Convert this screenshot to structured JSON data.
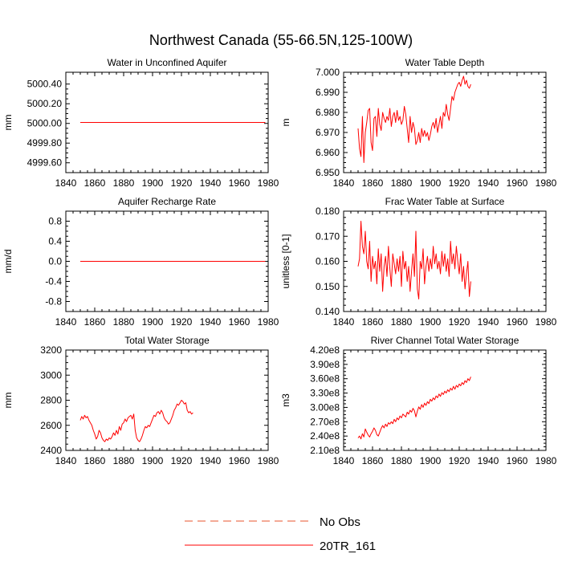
{
  "figure": {
    "title": "Northwest Canada (55-66.5N,125-100W)",
    "legend": [
      {
        "label": "No Obs",
        "style": "dashed",
        "colors": [
          "#e8542c",
          "#6a6acd"
        ]
      },
      {
        "label": "20TR_161",
        "style": "solid",
        "colors": [
          "#ff0000"
        ]
      }
    ],
    "series_color": "#ff0000"
  },
  "chart_data": [
    {
      "type": "line",
      "title": "Water in Unconfined Aquifer",
      "xlabel": "",
      "ylabel": "mm",
      "xlim": [
        1840,
        1980
      ],
      "ylim": [
        4999.5,
        5000.52
      ],
      "xticks": [
        1840,
        1860,
        1880,
        1900,
        1920,
        1940,
        1960,
        1980
      ],
      "yticks": [
        4999.6,
        4999.8,
        5000.0,
        5000.2,
        5000.4
      ],
      "yticklabels": [
        "4999.60",
        "4999.80",
        "5000.00",
        "5000.20",
        "5000.40"
      ],
      "series": [
        {
          "name": "20TR_161",
          "x": [
            1850,
            1978
          ],
          "values": [
            5000.01,
            5000.01
          ]
        }
      ]
    },
    {
      "type": "line",
      "title": "Water Table Depth",
      "xlabel": "",
      "ylabel": "m",
      "xlim": [
        1840,
        1980
      ],
      "ylim": [
        6.95,
        7.0
      ],
      "xticks": [
        1840,
        1860,
        1880,
        1900,
        1920,
        1940,
        1960,
        1980
      ],
      "yticks": [
        6.95,
        6.96,
        6.97,
        6.98,
        6.99,
        7.0
      ],
      "yticklabels": [
        "6.950",
        "6.960",
        "6.970",
        "6.980",
        "6.990",
        "7.000"
      ],
      "series": [
        {
          "name": "20TR_161",
          "x_start": 1850,
          "x_step": 1,
          "values": [
            6.972,
            6.962,
            6.958,
            6.978,
            6.955,
            6.97,
            6.975,
            6.981,
            6.982,
            6.965,
            6.961,
            6.977,
            6.978,
            6.968,
            6.982,
            6.974,
            6.971,
            6.98,
            6.977,
            6.975,
            6.978,
            6.976,
            6.982,
            6.973,
            6.978,
            6.98,
            6.975,
            6.981,
            6.976,
            6.978,
            6.974,
            6.976,
            6.983,
            6.979,
            6.972,
            6.965,
            6.978,
            6.97,
            6.975,
            6.972,
            6.964,
            6.966,
            6.97,
            6.965,
            6.972,
            6.968,
            6.971,
            6.968,
            6.97,
            6.966,
            6.969,
            6.973,
            6.975,
            6.972,
            6.977,
            6.97,
            6.974,
            6.978,
            6.972,
            6.98,
            6.978,
            6.984,
            6.979,
            6.976,
            6.982,
            6.988,
            6.986,
            6.99,
            6.992,
            6.994,
            6.995,
            6.993,
            6.996,
            6.998,
            6.994,
            6.996,
            6.993,
            6.992,
            6.994
          ]
        }
      ]
    },
    {
      "type": "line",
      "title": "Aquifer Recharge Rate",
      "xlabel": "",
      "ylabel": "mm/d",
      "xlim": [
        1840,
        1980
      ],
      "ylim": [
        -1.0,
        1.0
      ],
      "xticks": [
        1840,
        1860,
        1880,
        1900,
        1920,
        1940,
        1960,
        1980
      ],
      "yticks": [
        -0.8,
        -0.4,
        0.0,
        0.4,
        0.8
      ],
      "yticklabels": [
        "-0.8",
        "-0.4",
        "0.0",
        "0.4",
        "0.8"
      ],
      "series": [
        {
          "name": "20TR_161",
          "x": [
            1850,
            1978
          ],
          "values": [
            0.0,
            0.0
          ]
        }
      ]
    },
    {
      "type": "line",
      "title": "Frac Water Table at Surface",
      "xlabel": "",
      "ylabel": "unitless [0-1]",
      "xlim": [
        1840,
        1980
      ],
      "ylim": [
        0.14,
        0.18
      ],
      "xticks": [
        1840,
        1860,
        1880,
        1900,
        1920,
        1940,
        1960,
        1980
      ],
      "yticks": [
        0.14,
        0.15,
        0.16,
        0.17,
        0.18
      ],
      "yticklabels": [
        "0.140",
        "0.150",
        "0.160",
        "0.170",
        "0.180"
      ],
      "series": [
        {
          "name": "20TR_161",
          "x_start": 1850,
          "x_step": 1,
          "values": [
            0.158,
            0.161,
            0.176,
            0.166,
            0.163,
            0.172,
            0.16,
            0.157,
            0.168,
            0.152,
            0.162,
            0.157,
            0.16,
            0.151,
            0.165,
            0.156,
            0.163,
            0.148,
            0.158,
            0.162,
            0.154,
            0.166,
            0.157,
            0.15,
            0.163,
            0.159,
            0.155,
            0.161,
            0.156,
            0.162,
            0.15,
            0.164,
            0.157,
            0.16,
            0.152,
            0.158,
            0.148,
            0.156,
            0.163,
            0.154,
            0.172,
            0.149,
            0.145,
            0.16,
            0.157,
            0.165,
            0.151,
            0.158,
            0.162,
            0.156,
            0.161,
            0.157,
            0.166,
            0.159,
            0.163,
            0.157,
            0.16,
            0.155,
            0.164,
            0.158,
            0.163,
            0.156,
            0.161,
            0.154,
            0.168,
            0.159,
            0.163,
            0.157,
            0.166,
            0.16,
            0.155,
            0.163,
            0.152,
            0.158,
            0.149,
            0.155,
            0.16,
            0.146,
            0.152
          ]
        }
      ]
    },
    {
      "type": "line",
      "title": "Total Water Storage",
      "xlabel": "",
      "ylabel": "mm",
      "xlim": [
        1840,
        1980
      ],
      "ylim": [
        2400,
        3200
      ],
      "xticks": [
        1840,
        1860,
        1880,
        1900,
        1920,
        1940,
        1960,
        1980
      ],
      "yticks": [
        2400,
        2600,
        2800,
        3000,
        3200
      ],
      "yticklabels": [
        "2400",
        "2600",
        "2800",
        "3000",
        "3200"
      ],
      "series": [
        {
          "name": "20TR_161",
          "x_start": 1850,
          "x_step": 1,
          "values": [
            2640,
            2670,
            2650,
            2680,
            2660,
            2670,
            2640,
            2620,
            2600,
            2560,
            2530,
            2490,
            2510,
            2560,
            2540,
            2500,
            2480,
            2470,
            2490,
            2480,
            2500,
            2490,
            2510,
            2540,
            2520,
            2560,
            2530,
            2590,
            2560,
            2610,
            2620,
            2650,
            2630,
            2660,
            2670,
            2680,
            2650,
            2690,
            2560,
            2500,
            2480,
            2470,
            2490,
            2520,
            2560,
            2590,
            2580,
            2600,
            2590,
            2620,
            2650,
            2680,
            2670,
            2700,
            2710,
            2690,
            2720,
            2700,
            2660,
            2640,
            2630,
            2610,
            2620,
            2650,
            2680,
            2720,
            2740,
            2770,
            2760,
            2780,
            2800,
            2790,
            2770,
            2780,
            2720,
            2700,
            2710,
            2690,
            2700
          ]
        }
      ]
    },
    {
      "type": "line",
      "title": "River Channel Total Water Storage",
      "xlabel": "",
      "ylabel": "m3",
      "xlim": [
        1840,
        1980
      ],
      "ylim": [
        210000000,
        420000000
      ],
      "xticks": [
        1840,
        1860,
        1880,
        1900,
        1920,
        1940,
        1960,
        1980
      ],
      "yticks": [
        210000000,
        240000000,
        270000000,
        300000000,
        330000000,
        360000000,
        390000000,
        420000000
      ],
      "yticklabels": [
        "2.10e8",
        "2.40e8",
        "2.70e8",
        "3.00e8",
        "3.30e8",
        "3.60e8",
        "3.90e8",
        "4.20e8"
      ],
      "series": [
        {
          "name": "20TR_161",
          "x_start": 1850,
          "x_step": 1,
          "values": [
            236000000,
            240000000,
            234000000,
            245000000,
            238000000,
            255000000,
            248000000,
            242000000,
            238000000,
            245000000,
            250000000,
            257000000,
            252000000,
            243000000,
            240000000,
            248000000,
            256000000,
            262000000,
            257000000,
            265000000,
            260000000,
            268000000,
            265000000,
            270000000,
            266000000,
            275000000,
            270000000,
            278000000,
            274000000,
            282000000,
            278000000,
            286000000,
            283000000,
            280000000,
            290000000,
            286000000,
            294000000,
            290000000,
            298000000,
            293000000,
            280000000,
            292000000,
            301000000,
            296000000,
            306000000,
            300000000,
            309000000,
            304000000,
            312000000,
            308000000,
            317000000,
            313000000,
            320000000,
            316000000,
            324000000,
            320000000,
            328000000,
            323000000,
            331000000,
            327000000,
            334000000,
            330000000,
            337000000,
            333000000,
            340000000,
            336000000,
            344000000,
            338000000,
            346000000,
            342000000,
            349000000,
            345000000,
            352000000,
            348000000,
            356000000,
            352000000,
            360000000,
            356000000,
            364000000
          ]
        }
      ]
    }
  ]
}
